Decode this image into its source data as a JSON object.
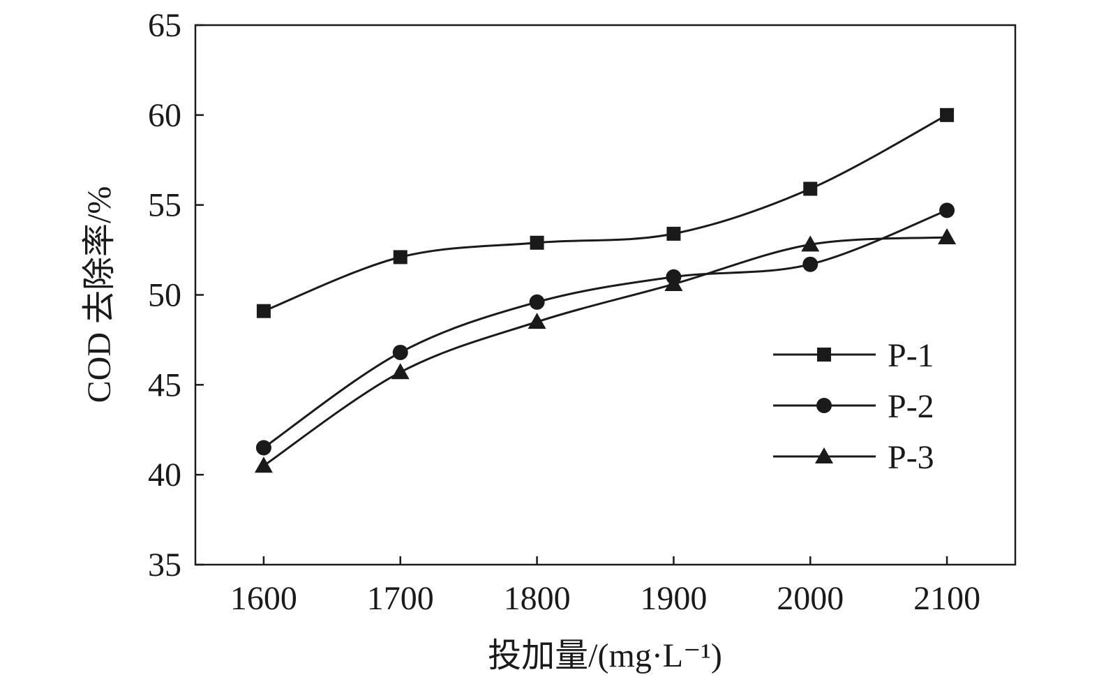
{
  "chart_data": {
    "type": "line",
    "title": "",
    "xlabel": "投加量/(mg·L⁻¹)",
    "ylabel": "COD 去除率/%",
    "x": [
      1600,
      1700,
      1800,
      1900,
      2000,
      2100
    ],
    "x_tick_labels": [
      "1600",
      "1700",
      "1800",
      "1900",
      "2000",
      "2100"
    ],
    "xlim": [
      1550,
      2150
    ],
    "ylim": [
      35,
      65
    ],
    "y_ticks": [
      35,
      40,
      45,
      50,
      55,
      60,
      65
    ],
    "y_tick_labels": [
      "35",
      "40",
      "45",
      "50",
      "55",
      "60",
      "65"
    ],
    "grid": false,
    "legend_position": "center-right",
    "series": [
      {
        "name": "P-1",
        "marker": "square",
        "values": [
          49.1,
          52.1,
          52.9,
          53.4,
          55.9,
          60.0
        ]
      },
      {
        "name": "P-2",
        "marker": "circle",
        "values": [
          41.5,
          46.8,
          49.6,
          51.0,
          51.7,
          54.7
        ]
      },
      {
        "name": "P-3",
        "marker": "triangle",
        "values": [
          40.5,
          45.7,
          48.5,
          50.6,
          52.8,
          53.2
        ]
      }
    ],
    "line_color": "#1a1a1a"
  }
}
